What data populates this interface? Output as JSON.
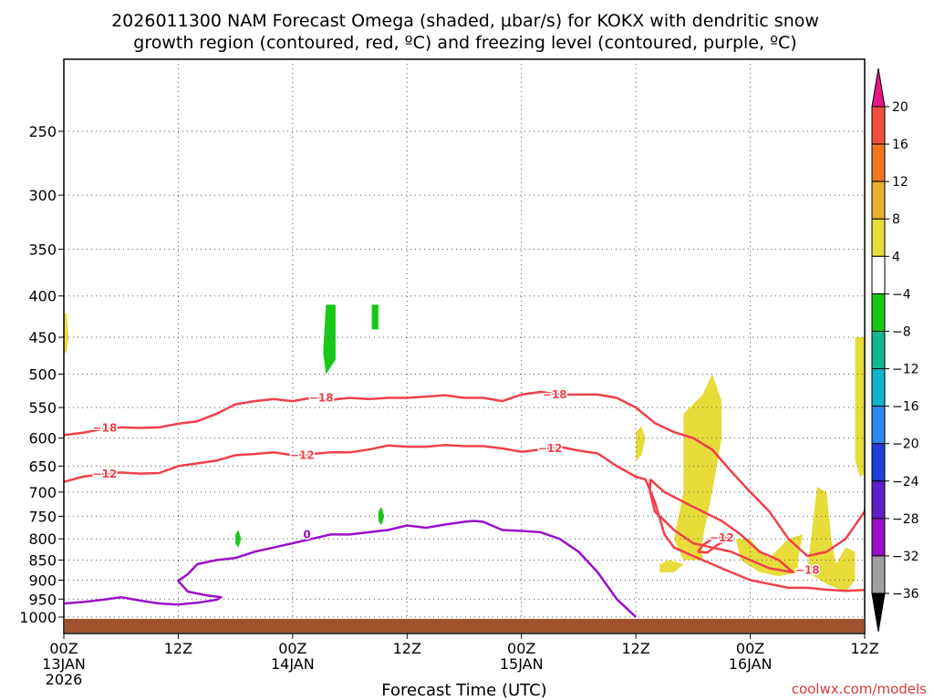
{
  "chart_data": {
    "type": "contour",
    "title_lines": [
      "2026011300 NAM Forecast Omega (shaded, µbar/s) for KOKX with dendritic snow",
      "growth region (contoured, red, ºC) and freezing level (contoured, purple, ºC)"
    ],
    "xlabel": "Forecast Time (UTC)",
    "ylabel": "",
    "credit": "coolwx.com/models",
    "xlim_hours": [
      0,
      84
    ],
    "ylim_hPa": [
      1000,
      200
    ],
    "y_scale": "log-pressure",
    "grid": true,
    "x_ticks": [
      {
        "hour": 0,
        "lines": [
          "00Z",
          "13JAN",
          "2026"
        ]
      },
      {
        "hour": 12,
        "lines": [
          "12Z"
        ]
      },
      {
        "hour": 24,
        "lines": [
          "00Z",
          "14JAN"
        ]
      },
      {
        "hour": 36,
        "lines": [
          "12Z"
        ]
      },
      {
        "hour": 48,
        "lines": [
          "00Z",
          "15JAN"
        ]
      },
      {
        "hour": 60,
        "lines": [
          "12Z"
        ]
      },
      {
        "hour": 72,
        "lines": [
          "00Z",
          "16JAN"
        ]
      },
      {
        "hour": 84,
        "lines": [
          "12Z"
        ]
      }
    ],
    "y_ticks": [
      250,
      300,
      350,
      400,
      450,
      500,
      550,
      600,
      650,
      700,
      750,
      800,
      850,
      900,
      950,
      1000
    ],
    "colorbar": {
      "labels": [
        "20",
        "16",
        "12",
        "8",
        "4",
        "−4",
        "−8",
        "−12",
        "−16",
        "−20",
        "−24",
        "−28",
        "−32",
        "−36"
      ],
      "colors": [
        "#e8158a",
        "#f0503c",
        "#f07820",
        "#e8b030",
        "#e8dc3a",
        "#ffffff",
        "#18c818",
        "#10b890",
        "#10b4cc",
        "#2a8cf0",
        "#2040d8",
        "#6020c8",
        "#9a10c8",
        "#a0a0a0",
        "#000000"
      ]
    },
    "contours": [
      {
        "kind": "dgz",
        "label": "−18",
        "color": "#f0404a",
        "points": [
          [
            0,
            595
          ],
          [
            2,
            591
          ],
          [
            4,
            585
          ],
          [
            6,
            582
          ],
          [
            8,
            583
          ],
          [
            10,
            582
          ],
          [
            12,
            576
          ],
          [
            14,
            572
          ],
          [
            16,
            560
          ],
          [
            18,
            545
          ],
          [
            20,
            540
          ],
          [
            22,
            537
          ],
          [
            24,
            540
          ],
          [
            26,
            535
          ],
          [
            28,
            538
          ],
          [
            30,
            535
          ],
          [
            32,
            537
          ],
          [
            34,
            535
          ],
          [
            36,
            535
          ],
          [
            38,
            533
          ],
          [
            40,
            531
          ],
          [
            42,
            535
          ],
          [
            44,
            535
          ],
          [
            46,
            540
          ],
          [
            48,
            530
          ],
          [
            50,
            526
          ],
          [
            52,
            530
          ],
          [
            54,
            530
          ],
          [
            56,
            530
          ],
          [
            58,
            535
          ],
          [
            60,
            550
          ],
          [
            62,
            575
          ],
          [
            64,
            590
          ],
          [
            66,
            600
          ],
          [
            68,
            620
          ],
          [
            70,
            660
          ],
          [
            72,
            700
          ],
          [
            74,
            740
          ],
          [
            76,
            800
          ],
          [
            78,
            840
          ],
          [
            80,
            830
          ],
          [
            82,
            800
          ],
          [
            84,
            740
          ],
          [
            84.5,
            655
          ]
        ]
      },
      {
        "kind": "dgz",
        "label": "−12",
        "color": "#f0404a",
        "points": [
          [
            0,
            680
          ],
          [
            2,
            670
          ],
          [
            4,
            665
          ],
          [
            6,
            662
          ],
          [
            8,
            664
          ],
          [
            10,
            663
          ],
          [
            12,
            650
          ],
          [
            14,
            645
          ],
          [
            16,
            640
          ],
          [
            18,
            630
          ],
          [
            20,
            628
          ],
          [
            22,
            625
          ],
          [
            24,
            630
          ],
          [
            26,
            628
          ],
          [
            28,
            625
          ],
          [
            30,
            625
          ],
          [
            32,
            620
          ],
          [
            34,
            613
          ],
          [
            36,
            615
          ],
          [
            38,
            615
          ],
          [
            40,
            612
          ],
          [
            42,
            614
          ],
          [
            44,
            614
          ],
          [
            46,
            618
          ],
          [
            48,
            624
          ],
          [
            50,
            620
          ],
          [
            52,
            615
          ],
          [
            54,
            622
          ],
          [
            56,
            627
          ],
          [
            58,
            650
          ],
          [
            60,
            670
          ],
          [
            61,
            675
          ],
          [
            62,
            720
          ],
          [
            63,
            790
          ],
          [
            64,
            820
          ],
          [
            66,
            840
          ],
          [
            68,
            860
          ],
          [
            70,
            880
          ],
          [
            72,
            900
          ],
          [
            74,
            910
          ],
          [
            76,
            920
          ],
          [
            78,
            920
          ],
          [
            80,
            925
          ],
          [
            82,
            928
          ],
          [
            84.5,
            925
          ]
        ]
      },
      {
        "kind": "dgz-closed",
        "label": "−12",
        "color": "#f0404a",
        "points": [
          [
            66.5,
            830
          ],
          [
            67,
            815
          ],
          [
            68,
            800
          ],
          [
            70,
            795
          ],
          [
            68.5,
            815
          ],
          [
            67.5,
            832
          ],
          [
            66.5,
            830
          ]
        ]
      },
      {
        "kind": "dgz-closed",
        "label": "",
        "color": "#f0404a",
        "points": [
          [
            61.5,
            675
          ],
          [
            63,
            700
          ],
          [
            66,
            730
          ],
          [
            69,
            760
          ],
          [
            71,
            790
          ],
          [
            73,
            830
          ],
          [
            75,
            850
          ],
          [
            76.5,
            880
          ],
          [
            74,
            870
          ],
          [
            72,
            850
          ],
          [
            70,
            830
          ],
          [
            68,
            820
          ],
          [
            66,
            810
          ],
          [
            64,
            780
          ],
          [
            62,
            740
          ],
          [
            61.5,
            700
          ],
          [
            61.5,
            675
          ]
        ]
      },
      {
        "kind": "freezing",
        "label": "0",
        "color": "#9a10c8",
        "points": [
          [
            0,
            962
          ],
          [
            2,
            958
          ],
          [
            4,
            952
          ],
          [
            6,
            945
          ],
          [
            8,
            954
          ],
          [
            10,
            962
          ],
          [
            12,
            965
          ],
          [
            14,
            960
          ],
          [
            16,
            952
          ],
          [
            16.5,
            945
          ],
          [
            15,
            940
          ],
          [
            13,
            930
          ],
          [
            12,
            902
          ],
          [
            13,
            885
          ],
          [
            14,
            860
          ],
          [
            16,
            850
          ],
          [
            18,
            845
          ],
          [
            20,
            830
          ],
          [
            22,
            820
          ],
          [
            24,
            810
          ],
          [
            26,
            800
          ],
          [
            28,
            790
          ],
          [
            30,
            790
          ],
          [
            32,
            785
          ],
          [
            34,
            780
          ],
          [
            36,
            770
          ],
          [
            38,
            775
          ],
          [
            40,
            768
          ],
          [
            42,
            762
          ],
          [
            43,
            760
          ],
          [
            44,
            762
          ],
          [
            46,
            780
          ],
          [
            48,
            782
          ],
          [
            50,
            785
          ],
          [
            52,
            800
          ],
          [
            54,
            830
          ],
          [
            56,
            880
          ],
          [
            58,
            950
          ],
          [
            60,
            1000
          ]
        ]
      }
    ],
    "omega_regions": [
      {
        "omega": 6,
        "color": "#e8dc3a",
        "points": [
          [
            0,
            420
          ],
          [
            0.3,
            420
          ],
          [
            0.5,
            450
          ],
          [
            0.3,
            470
          ],
          [
            0,
            470
          ]
        ]
      },
      {
        "omega": -6,
        "color": "#18c818",
        "points": [
          [
            27.5,
            410
          ],
          [
            28.5,
            410
          ],
          [
            28.5,
            480
          ],
          [
            27.5,
            500
          ],
          [
            27.2,
            470
          ]
        ]
      },
      {
        "omega": -6,
        "color": "#18c818",
        "points": [
          [
            32.3,
            410
          ],
          [
            33,
            410
          ],
          [
            33,
            440
          ],
          [
            32.3,
            440
          ]
        ]
      },
      {
        "omega": -6,
        "color": "#18c818",
        "points": [
          [
            18,
            790
          ],
          [
            18.3,
            780
          ],
          [
            18.6,
            800
          ],
          [
            18.3,
            820
          ],
          [
            18,
            810
          ]
        ]
      },
      {
        "omega": -6,
        "color": "#18c818",
        "points": [
          [
            33,
            740
          ],
          [
            33.3,
            730
          ],
          [
            33.6,
            750
          ],
          [
            33.3,
            770
          ],
          [
            33,
            760
          ]
        ]
      },
      {
        "omega": 6,
        "color": "#e8dc3a",
        "points": [
          [
            60,
            590
          ],
          [
            60.6,
            580
          ],
          [
            61,
            600
          ],
          [
            60.6,
            630
          ],
          [
            60,
            640
          ]
        ]
      },
      {
        "omega": 6,
        "color": "#e8dc3a",
        "points": [
          [
            65,
            560
          ],
          [
            67,
            530
          ],
          [
            68,
            500
          ],
          [
            69,
            540
          ],
          [
            69,
            600
          ],
          [
            68,
            700
          ],
          [
            67,
            800
          ],
          [
            67,
            850
          ],
          [
            65,
            850
          ],
          [
            64,
            800
          ],
          [
            65,
            700
          ]
        ]
      },
      {
        "omega": 6,
        "color": "#e8dc3a",
        "points": [
          [
            62.5,
            860
          ],
          [
            63.5,
            850
          ],
          [
            65,
            860
          ],
          [
            64,
            880
          ],
          [
            62.5,
            880
          ]
        ]
      },
      {
        "omega": 6,
        "color": "#e8dc3a",
        "points": [
          [
            70.5,
            800
          ],
          [
            72,
            800
          ],
          [
            73,
            830
          ],
          [
            74,
            845
          ],
          [
            76,
            800
          ],
          [
            77.5,
            790
          ],
          [
            77,
            850
          ],
          [
            77,
            880
          ],
          [
            75,
            890
          ],
          [
            73,
            880
          ],
          [
            71,
            850
          ]
        ]
      },
      {
        "omega": 6,
        "color": "#e8dc3a",
        "points": [
          [
            78,
            870
          ],
          [
            79,
            690
          ],
          [
            80,
            700
          ],
          [
            80.5,
            800
          ],
          [
            81,
            860
          ],
          [
            82,
            820
          ],
          [
            83,
            830
          ],
          [
            83,
            900
          ],
          [
            82,
            930
          ],
          [
            80,
            910
          ],
          [
            78,
            880
          ]
        ]
      },
      {
        "omega": 6,
        "color": "#e8dc3a",
        "points": [
          [
            83,
            450
          ],
          [
            84,
            450
          ],
          [
            84.5,
            520
          ],
          [
            84.5,
            660
          ],
          [
            83.5,
            670
          ],
          [
            83,
            640
          ]
        ]
      }
    ],
    "terrain_color": "#a0522d"
  }
}
